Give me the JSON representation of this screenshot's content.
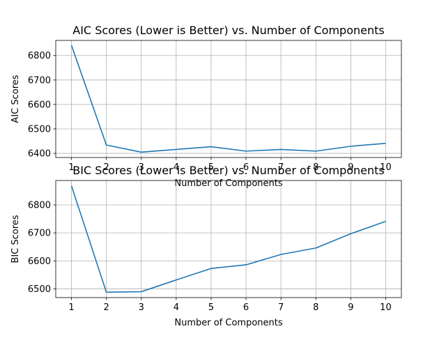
{
  "chart_data": [
    {
      "type": "line",
      "title": "AIC Scores (Lower is Better) vs. Number of Components",
      "xlabel": "Number of Components",
      "ylabel": "AIC Scores",
      "x": [
        1,
        2,
        3,
        4,
        5,
        6,
        7,
        8,
        9,
        10
      ],
      "series": [
        {
          "values": [
            6842,
            6434,
            6405,
            6416,
            6427,
            6409,
            6416,
            6409,
            6429,
            6441
          ]
        }
      ],
      "xticks": [
        "1",
        "2",
        "3",
        "4",
        "5",
        "6",
        "7",
        "8",
        "9",
        "10"
      ],
      "yticks": [
        "6400",
        "6500",
        "6600",
        "6700",
        "6800"
      ],
      "xlim": [
        0.55,
        10.45
      ],
      "ylim": [
        6383,
        6862
      ],
      "grid": true,
      "line_color": "#1f77b4"
    },
    {
      "type": "line",
      "title": "BIC Scores (Lower is Better) vs. Number of Components",
      "xlabel": "Number of Components",
      "ylabel": "BIC Scores",
      "x": [
        1,
        2,
        3,
        4,
        5,
        6,
        7,
        8,
        9,
        10
      ],
      "series": [
        {
          "values": [
            6868,
            6488,
            6490,
            6532,
            6573,
            6586,
            6623,
            6646,
            6697,
            6741
          ]
        }
      ],
      "xticks": [
        "1",
        "2",
        "3",
        "4",
        "5",
        "6",
        "7",
        "8",
        "9",
        "10"
      ],
      "yticks": [
        "6500",
        "6600",
        "6700",
        "6800"
      ],
      "xlim": [
        0.55,
        10.45
      ],
      "ylim": [
        6469,
        6887
      ],
      "grid": true,
      "line_color": "#1f77b4"
    }
  ]
}
